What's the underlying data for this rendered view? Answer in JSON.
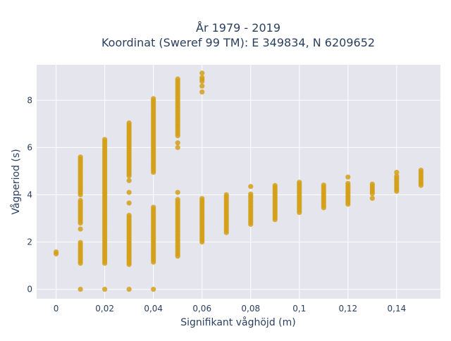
{
  "chart_data": {
    "type": "scatter",
    "title_line1": "År 1979 - 2019",
    "title_line2": "Koordinat (Sweref 99 TM): E 349834, N 6209652",
    "xlabel": "Signifikant våghöjd (m)",
    "ylabel": "Vågperiod (s)",
    "xlim": [
      -0.008,
      0.158
    ],
    "ylim": [
      -0.4,
      9.5
    ],
    "x_ticks": [
      0,
      0.02,
      0.04,
      0.06,
      0.08,
      0.1,
      0.12,
      0.14
    ],
    "x_tick_labels": [
      "0",
      "0,02",
      "0,04",
      "0,06",
      "0,08",
      "0,1",
      "0,12",
      "0,14"
    ],
    "y_ticks": [
      0,
      2,
      4,
      6,
      8
    ],
    "y_tick_labels": [
      "0",
      "2",
      "4",
      "6",
      "8"
    ],
    "grid": true,
    "marker_color": "#d4a017",
    "plot_bg": "#e5e5ee",
    "series": [
      {
        "columns": [
          {
            "x": 0.0,
            "ranges": [
              [
                1.5,
                1.6
              ]
            ],
            "points": []
          },
          {
            "x": 0.01,
            "ranges": [
              [
                1.1,
                2.0
              ],
              [
                2.8,
                3.8
              ],
              [
                4.0,
                5.6
              ]
            ],
            "points": [
              0,
              2.55
            ]
          },
          {
            "x": 0.02,
            "ranges": [
              [
                1.1,
                4.1
              ],
              [
                4.1,
                6.35
              ]
            ],
            "points": [
              0
            ]
          },
          {
            "x": 0.03,
            "ranges": [
              [
                1.05,
                3.2
              ],
              [
                4.8,
                7.1
              ]
            ],
            "points": [
              0,
              3.65,
              4.1,
              4.6
            ]
          },
          {
            "x": 0.04,
            "ranges": [
              [
                1.15,
                3.5
              ],
              [
                4.95,
                8.1
              ]
            ],
            "points": [
              0
            ]
          },
          {
            "x": 0.05,
            "ranges": [
              [
                1.4,
                3.8
              ],
              [
                6.5,
                8.95
              ]
            ],
            "points": [
              4.1,
              6.0,
              6.2
            ]
          },
          {
            "x": 0.06,
            "ranges": [
              [
                2.0,
                3.85
              ],
              [
                8.8,
                9.0
              ]
            ],
            "points": [
              8.35,
              8.6,
              9.15
            ]
          },
          {
            "x": 0.07,
            "ranges": [
              [
                2.4,
                4.05
              ]
            ],
            "points": []
          },
          {
            "x": 0.08,
            "ranges": [
              [
                2.75,
                4.1
              ]
            ],
            "points": [
              4.35
            ]
          },
          {
            "x": 0.09,
            "ranges": [
              [
                2.95,
                4.4
              ]
            ],
            "points": []
          },
          {
            "x": 0.1,
            "ranges": [
              [
                3.25,
                4.6
              ]
            ],
            "points": []
          },
          {
            "x": 0.11,
            "ranges": [
              [
                3.45,
                4.45
              ]
            ],
            "points": []
          },
          {
            "x": 0.12,
            "ranges": [
              [
                3.6,
                4.5
              ]
            ],
            "points": [
              4.75
            ]
          },
          {
            "x": 0.13,
            "ranges": [
              [
                4.05,
                4.5
              ]
            ],
            "points": [
              3.85
            ]
          },
          {
            "x": 0.14,
            "ranges": [
              [
                4.15,
                4.8
              ]
            ],
            "points": [
              4.95
            ]
          },
          {
            "x": 0.15,
            "ranges": [
              [
                4.4,
                5.1
              ]
            ],
            "points": []
          }
        ]
      }
    ]
  }
}
